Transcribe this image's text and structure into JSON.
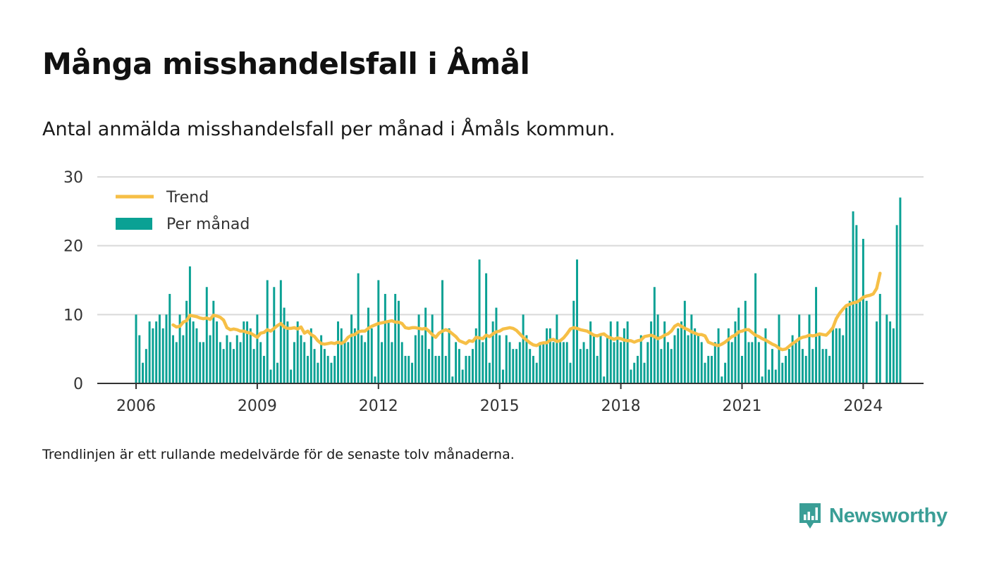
{
  "title": "Många misshandelsfall i Åmål",
  "subtitle": "Antal anmälda misshandelsfall per månad i Åmåls kommun.",
  "footnote": "Trendlinjen är ett rullande medelvärde för de senaste tolv månaderna.",
  "brand": {
    "name": "Newsworthy",
    "color": "#3a9e96"
  },
  "colors": {
    "bars": "#0aa194",
    "trend": "#f6bf46",
    "grid": "#d9d9d9",
    "axis": "#333333"
  },
  "chart_data": {
    "type": "bar",
    "x_start": "2006-01",
    "x_ticks": [
      "2006",
      "2009",
      "2012",
      "2015",
      "2018",
      "2021",
      "2024"
    ],
    "y_ticks": [
      0,
      10,
      20,
      30
    ],
    "ylim": [
      0,
      30
    ],
    "grid": true,
    "legend_position": "top-left",
    "series": [
      {
        "name": "Per månad",
        "type": "bar",
        "values": [
          10,
          7,
          3,
          5,
          9,
          8,
          9,
          10,
          8,
          10,
          13,
          7,
          6,
          10,
          7,
          12,
          17,
          9,
          8,
          6,
          6,
          14,
          7,
          12,
          9,
          6,
          5,
          7,
          6,
          5,
          7,
          6,
          9,
          9,
          8,
          5,
          10,
          6,
          4,
          15,
          2,
          14,
          3,
          15,
          11,
          9,
          2,
          6,
          9,
          7,
          6,
          4,
          8,
          5,
          3,
          7,
          5,
          4,
          3,
          4,
          9,
          8,
          6,
          6,
          10,
          8,
          16,
          7,
          6,
          11,
          8,
          1,
          15,
          6,
          13,
          9,
          6,
          13,
          12,
          6,
          4,
          4,
          3,
          7,
          10,
          7,
          11,
          5,
          10,
          4,
          4,
          15,
          4,
          8,
          1,
          6,
          5,
          2,
          4,
          4,
          5,
          8,
          18,
          6,
          16,
          3,
          9,
          11,
          7,
          2,
          7,
          6,
          5,
          5,
          6,
          10,
          7,
          5,
          4,
          3,
          6,
          6,
          8,
          8,
          6,
          10,
          6,
          6,
          6,
          3,
          12,
          18,
          5,
          6,
          5,
          9,
          7,
          4,
          7,
          1,
          7,
          9,
          6,
          9,
          6,
          8,
          9,
          2,
          3,
          4,
          7,
          3,
          6,
          9,
          14,
          10,
          5,
          9,
          6,
          5,
          7,
          8,
          9,
          12,
          7,
          10,
          8,
          7,
          6,
          3,
          4,
          4,
          6,
          8,
          1,
          3,
          8,
          6,
          9,
          11,
          4,
          12,
          6,
          6,
          16,
          6,
          1,
          8,
          2,
          5,
          2,
          10,
          3,
          4,
          5,
          7,
          6,
          10,
          5,
          4,
          10,
          5,
          14,
          7,
          5,
          5,
          4,
          8,
          8,
          8,
          7,
          11,
          12,
          25,
          23,
          12,
          21,
          12,
          null,
          null,
          9,
          13,
          null,
          10,
          9,
          8,
          23,
          27
        ]
      },
      {
        "name": "Trend",
        "type": "line",
        "values": [
          null,
          null,
          null,
          null,
          null,
          null,
          null,
          null,
          null,
          null,
          null,
          8.5,
          8.2,
          8.3,
          8.9,
          9.1,
          9.9,
          9.8,
          9.7,
          9.5,
          9.4,
          9.5,
          9.3,
          9.9,
          9.8,
          9.6,
          9.2,
          8.1,
          7.8,
          7.9,
          7.8,
          7.6,
          7.6,
          7.4,
          7.3,
          7.0,
          6.7,
          7.3,
          7.4,
          7.8,
          7.6,
          8.0,
          8.4,
          8.7,
          8.2,
          8.0,
          8.0,
          8.1,
          7.9,
          8.2,
          7.3,
          7.6,
          7.1,
          6.8,
          6.2,
          5.8,
          5.7,
          5.8,
          5.9,
          5.8,
          6.0,
          5.8,
          6.1,
          6.7,
          7.0,
          7.1,
          7.5,
          7.6,
          7.6,
          8.0,
          8.3,
          8.5,
          8.7,
          8.8,
          8.9,
          9.0,
          9.1,
          8.9,
          8.9,
          8.7,
          8.1,
          8.0,
          8.1,
          8.1,
          8.0,
          7.9,
          8.0,
          7.6,
          7.1,
          6.7,
          7.3,
          7.6,
          7.8,
          7.6,
          7.2,
          6.8,
          6.2,
          6.0,
          5.8,
          6.2,
          6.1,
          6.7,
          6.6,
          6.5,
          7.0,
          6.8,
          7.2,
          7.5,
          7.6,
          7.9,
          8.0,
          8.1,
          8.0,
          7.7,
          7.2,
          6.7,
          6.3,
          5.9,
          5.6,
          5.5,
          5.8,
          5.9,
          5.9,
          6.3,
          6.4,
          6.1,
          6.2,
          6.6,
          7.2,
          7.9,
          8.1,
          8.0,
          7.8,
          7.7,
          7.6,
          7.3,
          7.0,
          6.9,
          7.1,
          7.2,
          6.8,
          6.6,
          6.4,
          6.6,
          6.5,
          6.3,
          6.2,
          6.2,
          6.0,
          6.2,
          6.3,
          6.8,
          6.9,
          7.0,
          6.8,
          6.5,
          6.7,
          7.0,
          7.2,
          7.6,
          8.3,
          8.6,
          8.3,
          8.0,
          7.8,
          7.5,
          7.3,
          7.1,
          7.1,
          6.9,
          6.0,
          5.8,
          5.6,
          5.5,
          5.7,
          6.0,
          6.4,
          6.8,
          7.0,
          7.5,
          7.6,
          7.8,
          7.8,
          7.4,
          7.0,
          6.8,
          6.5,
          6.3,
          6.0,
          5.7,
          5.5,
          5.1,
          4.9,
          5.0,
          5.4,
          5.8,
          6.1,
          6.5,
          6.7,
          6.8,
          7.0,
          6.9,
          7.0,
          7.2,
          7.1,
          7.0,
          7.5,
          8.1,
          9.4,
          10.2,
          10.8,
          11.3,
          11.5,
          11.7,
          11.8,
          12.1,
          12.5,
          12.7,
          12.8,
          13.0,
          13.8,
          16.0
        ]
      }
    ]
  }
}
